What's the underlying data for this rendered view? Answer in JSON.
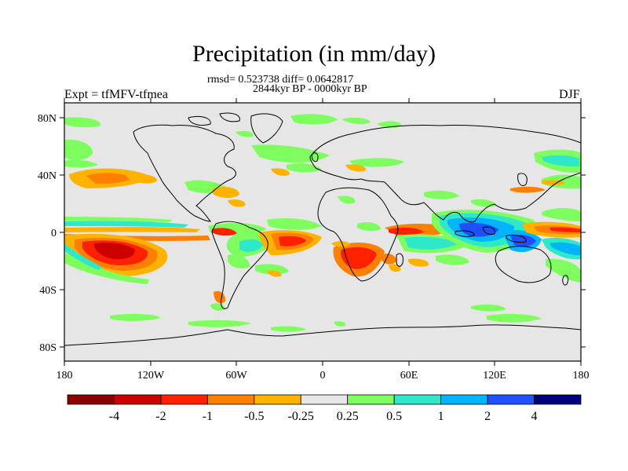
{
  "title": "Precipitation (in mm/day)",
  "stats_line": "rmsd= 0.523738 diff= 0.0642817",
  "period": "2844kyr BP - 0000kyr BP",
  "experiment": "Expt = tfMFV-tfmea",
  "season": "DJF",
  "map": {
    "y_tick_labels": [
      "80N",
      "40N",
      "0",
      "40S",
      "80S"
    ],
    "x_tick_labels": [
      "180",
      "120W",
      "60W",
      "0",
      "60E",
      "120E",
      "180"
    ],
    "background_color": "#e6e6e6"
  },
  "colorbar": {
    "colors": [
      "#8b0000",
      "#cc0000",
      "#ff2000",
      "#ff7f00",
      "#ffb300",
      "#e6e6e6",
      "#7fff5f",
      "#2ee8c8",
      "#00b4ff",
      "#1e50ff",
      "#00007f"
    ],
    "labels": [
      "-4",
      "-2",
      "-1",
      "-0.5",
      "-0.25",
      "0.25",
      "0.5",
      "1",
      "2",
      "4"
    ]
  }
}
